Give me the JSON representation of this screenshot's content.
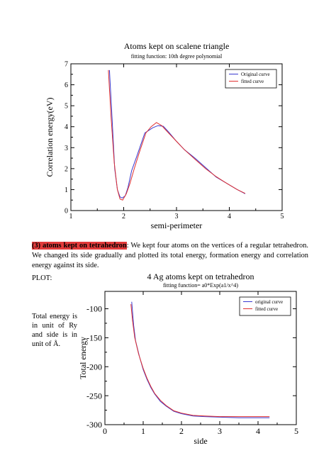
{
  "chart_data": [
    {
      "type": "line",
      "title": "Atoms kept on scalene triangle",
      "subtitle": "fitting function:  10th degree polynomial",
      "xlabel": "semi-perimeter",
      "ylabel": "Correlation energy(eV)",
      "xlim": [
        1,
        5
      ],
      "ylim": [
        0,
        7
      ],
      "xticks": [
        1,
        2,
        3,
        4,
        5
      ],
      "yticks": [
        0,
        1,
        2,
        3,
        4,
        5,
        6,
        7
      ],
      "grid": false,
      "legend_position": "top-right",
      "series": [
        {
          "name": "Original curve",
          "color": "#3a3ad0",
          "x": [
            1.73,
            1.78,
            1.83,
            1.88,
            1.93,
            1.97,
            2.03,
            2.08,
            2.15,
            2.25,
            2.4,
            2.55,
            2.65,
            2.75,
            2.85,
            3.0,
            3.15,
            3.35,
            3.55,
            3.75,
            3.95,
            4.15,
            4.3
          ],
          "y": [
            6.7,
            4.4,
            2.0,
            1.0,
            0.65,
            0.6,
            0.7,
            1.1,
            1.9,
            2.6,
            3.7,
            3.95,
            4.05,
            4.02,
            3.75,
            3.3,
            2.9,
            2.5,
            2.05,
            1.6,
            1.3,
            1.0,
            0.8
          ]
        },
        {
          "name": "fitted curve",
          "color": "#e03030",
          "x": [
            1.71,
            1.76,
            1.82,
            1.88,
            1.93,
            1.98,
            2.05,
            2.12,
            2.2,
            2.3,
            2.42,
            2.52,
            2.62,
            2.72,
            2.85,
            3.0,
            3.15,
            3.35,
            3.55,
            3.75,
            3.95,
            4.15,
            4.3
          ],
          "y": [
            6.7,
            4.5,
            2.3,
            1.0,
            0.55,
            0.5,
            0.8,
            1.3,
            2.0,
            2.8,
            3.7,
            4.0,
            4.2,
            4.05,
            3.7,
            3.3,
            2.9,
            2.45,
            2.0,
            1.62,
            1.3,
            1.0,
            0.82
          ]
        }
      ]
    },
    {
      "type": "line",
      "title": "4 Ag atoms kept on tetrahedron",
      "subtitle": "fitting function= a0*Exp(a1/x^4)",
      "xlabel": "side",
      "ylabel": "Total energy",
      "xlim": [
        0,
        5
      ],
      "ylim": [
        -300,
        -70
      ],
      "xticks": [
        0,
        1,
        2,
        3,
        4,
        5
      ],
      "yticks": [
        -300,
        -250,
        -200,
        -150,
        -100
      ],
      "grid": false,
      "legend_position": "top-right",
      "series": [
        {
          "name": "original curve",
          "color": "#3a3ad0",
          "x": [
            0.7,
            0.75,
            0.8,
            0.9,
            1.0,
            1.1,
            1.2,
            1.3,
            1.45,
            1.6,
            1.8,
            2.0,
            2.3,
            2.6,
            3.0,
            3.5,
            4.0,
            4.3
          ],
          "y": [
            -88,
            -128,
            -155,
            -182,
            -205,
            -222,
            -236,
            -247,
            -260,
            -268,
            -277,
            -281,
            -285,
            -286,
            -287,
            -288,
            -288,
            -288
          ]
        },
        {
          "name": "fitted curve",
          "color": "#e03030",
          "x": [
            0.68,
            0.72,
            0.78,
            0.88,
            1.0,
            1.1,
            1.2,
            1.3,
            1.45,
            1.6,
            1.8,
            2.0,
            2.3,
            2.6,
            3.0,
            3.5,
            4.0,
            4.3
          ],
          "y": [
            -92,
            -120,
            -150,
            -178,
            -203,
            -220,
            -234,
            -246,
            -258,
            -267,
            -276,
            -280,
            -284,
            -285,
            -286,
            -286,
            -286,
            -286
          ]
        }
      ]
    }
  ],
  "text": {
    "para_highlight": "(3) atoms kept on tetrahedron",
    "para_body": ": We kept four atoms on the vertices of a regular tetrahedron. We changed its side gradually and plotted its total energy, formation energy and correlation energy against its side.",
    "plot_label": "PLOT:",
    "side_note": "Total energy is in unit of Ry and side is in unit of Å."
  }
}
